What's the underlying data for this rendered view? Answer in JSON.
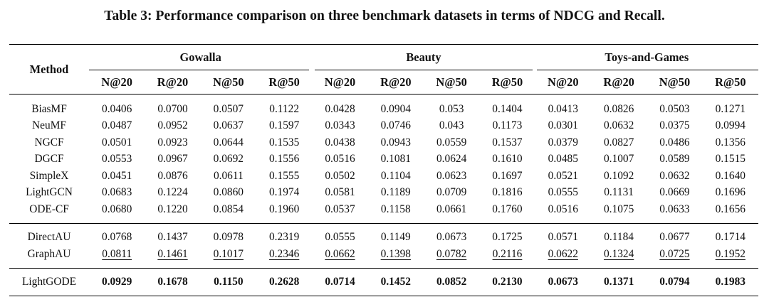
{
  "caption": "Table 3: Performance comparison on three benchmark datasets in terms of NDCG and Recall.",
  "method_header": "Method",
  "datasets": [
    "Gowalla",
    "Beauty",
    "Toys-and-Games"
  ],
  "metrics": [
    "N@20",
    "R@20",
    "N@50",
    "R@50",
    "N@20",
    "R@20",
    "N@50",
    "R@50",
    "N@20",
    "R@20",
    "N@50",
    "R@50"
  ],
  "groups": [
    {
      "rows": [
        {
          "method": "BiasMF",
          "values": [
            "0.0406",
            "0.0700",
            "0.0507",
            "0.1122",
            "0.0428",
            "0.0904",
            "0.053",
            "0.1404",
            "0.0413",
            "0.0826",
            "0.0503",
            "0.1271"
          ]
        },
        {
          "method": "NeuMF",
          "values": [
            "0.0487",
            "0.0952",
            "0.0637",
            "0.1597",
            "0.0343",
            "0.0746",
            "0.043",
            "0.1173",
            "0.0301",
            "0.0632",
            "0.0375",
            "0.0994"
          ]
        },
        {
          "method": "NGCF",
          "values": [
            "0.0501",
            "0.0923",
            "0.0644",
            "0.1535",
            "0.0438",
            "0.0943",
            "0.0559",
            "0.1537",
            "0.0379",
            "0.0827",
            "0.0486",
            "0.1356"
          ]
        },
        {
          "method": "DGCF",
          "values": [
            "0.0553",
            "0.0967",
            "0.0692",
            "0.1556",
            "0.0516",
            "0.1081",
            "0.0624",
            "0.1610",
            "0.0485",
            "0.1007",
            "0.0589",
            "0.1515"
          ]
        },
        {
          "method": "SimpleX",
          "values": [
            "0.0451",
            "0.0876",
            "0.0611",
            "0.1555",
            "0.0502",
            "0.1104",
            "0.0623",
            "0.1697",
            "0.0521",
            "0.1092",
            "0.0632",
            "0.1640"
          ]
        },
        {
          "method": "LightGCN",
          "values": [
            "0.0683",
            "0.1224",
            "0.0860",
            "0.1974",
            "0.0581",
            "0.1189",
            "0.0709",
            "0.1816",
            "0.0555",
            "0.1131",
            "0.0669",
            "0.1696"
          ]
        },
        {
          "method": "ODE-CF",
          "values": [
            "0.0680",
            "0.1220",
            "0.0854",
            "0.1960",
            "0.0537",
            "0.1158",
            "0.0661",
            "0.1760",
            "0.0516",
            "0.1075",
            "0.0633",
            "0.1656"
          ]
        }
      ]
    },
    {
      "rows": [
        {
          "method": "DirectAU",
          "values": [
            "0.0768",
            "0.1437",
            "0.0978",
            "0.2319",
            "0.0555",
            "0.1149",
            "0.0673",
            "0.1725",
            "0.0571",
            "0.1184",
            "0.0677",
            "0.1714"
          ]
        },
        {
          "method": "GraphAU",
          "values": [
            "0.0811",
            "0.1461",
            "0.1017",
            "0.2346",
            "0.0662",
            "0.1398",
            "0.0782",
            "0.2116",
            "0.0622",
            "0.1324",
            "0.0725",
            "0.1952"
          ]
        }
      ]
    },
    {
      "rows": [
        {
          "method": "LightGODE",
          "values": [
            "0.0929",
            "0.1678",
            "0.1150",
            "0.2628",
            "0.0714",
            "0.1452",
            "0.0852",
            "0.2130",
            "0.0673",
            "0.1371",
            "0.0794",
            "0.1983"
          ]
        }
      ]
    }
  ]
}
